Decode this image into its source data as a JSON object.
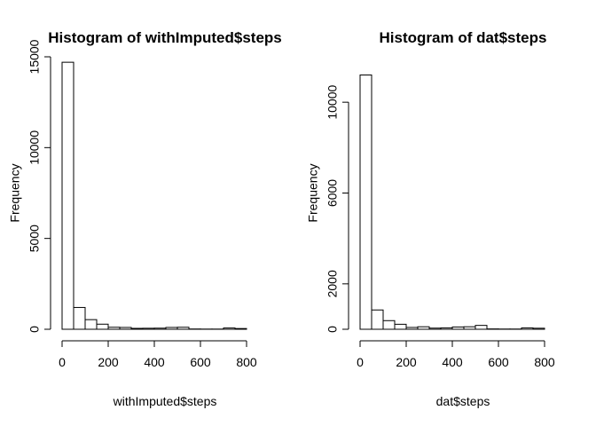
{
  "chart_data": [
    {
      "type": "bar",
      "title": "Histogram of withImputed$steps",
      "xlabel": "withImputed$steps",
      "ylabel": "Frequency",
      "xlim": [
        0,
        850
      ],
      "ylim": [
        0,
        15000
      ],
      "xticks": [
        0,
        200,
        400,
        600,
        800
      ],
      "yticks": [
        0,
        5000,
        10000,
        15000
      ],
      "bins": [
        {
          "x0": 0,
          "x1": 50,
          "count": 14700
        },
        {
          "x0": 50,
          "x1": 100,
          "count": 1200
        },
        {
          "x0": 100,
          "x1": 150,
          "count": 530
        },
        {
          "x0": 150,
          "x1": 200,
          "count": 280
        },
        {
          "x0": 200,
          "x1": 250,
          "count": 110
        },
        {
          "x0": 250,
          "x1": 300,
          "count": 100
        },
        {
          "x0": 300,
          "x1": 350,
          "count": 50
        },
        {
          "x0": 350,
          "x1": 400,
          "count": 55
        },
        {
          "x0": 400,
          "x1": 450,
          "count": 60
        },
        {
          "x0": 450,
          "x1": 500,
          "count": 100
        },
        {
          "x0": 500,
          "x1": 550,
          "count": 110
        },
        {
          "x0": 550,
          "x1": 600,
          "count": 15
        },
        {
          "x0": 600,
          "x1": 650,
          "count": 10
        },
        {
          "x0": 650,
          "x1": 700,
          "count": 10
        },
        {
          "x0": 700,
          "x1": 750,
          "count": 70
        },
        {
          "x0": 750,
          "x1": 800,
          "count": 40
        }
      ]
    },
    {
      "type": "bar",
      "title": "Histogram of dat$steps",
      "xlabel": "dat$steps",
      "ylabel": "Frequency",
      "xlim": [
        0,
        850
      ],
      "ylim": [
        0,
        12000
      ],
      "xticks": [
        0,
        200,
        400,
        600,
        800
      ],
      "yticks": [
        0,
        2000,
        6000,
        10000
      ],
      "bins": [
        {
          "x0": 0,
          "x1": 50,
          "count": 11200
        },
        {
          "x0": 50,
          "x1": 100,
          "count": 850
        },
        {
          "x0": 100,
          "x1": 150,
          "count": 380
        },
        {
          "x0": 150,
          "x1": 200,
          "count": 220
        },
        {
          "x0": 200,
          "x1": 250,
          "count": 80
        },
        {
          "x0": 250,
          "x1": 300,
          "count": 110
        },
        {
          "x0": 300,
          "x1": 350,
          "count": 50
        },
        {
          "x0": 350,
          "x1": 400,
          "count": 60
        },
        {
          "x0": 400,
          "x1": 450,
          "count": 100
        },
        {
          "x0": 450,
          "x1": 500,
          "count": 110
        },
        {
          "x0": 500,
          "x1": 550,
          "count": 170
        },
        {
          "x0": 550,
          "x1": 600,
          "count": 15
        },
        {
          "x0": 600,
          "x1": 650,
          "count": 10
        },
        {
          "x0": 650,
          "x1": 700,
          "count": 10
        },
        {
          "x0": 700,
          "x1": 750,
          "count": 60
        },
        {
          "x0": 750,
          "x1": 800,
          "count": 45
        }
      ]
    }
  ]
}
